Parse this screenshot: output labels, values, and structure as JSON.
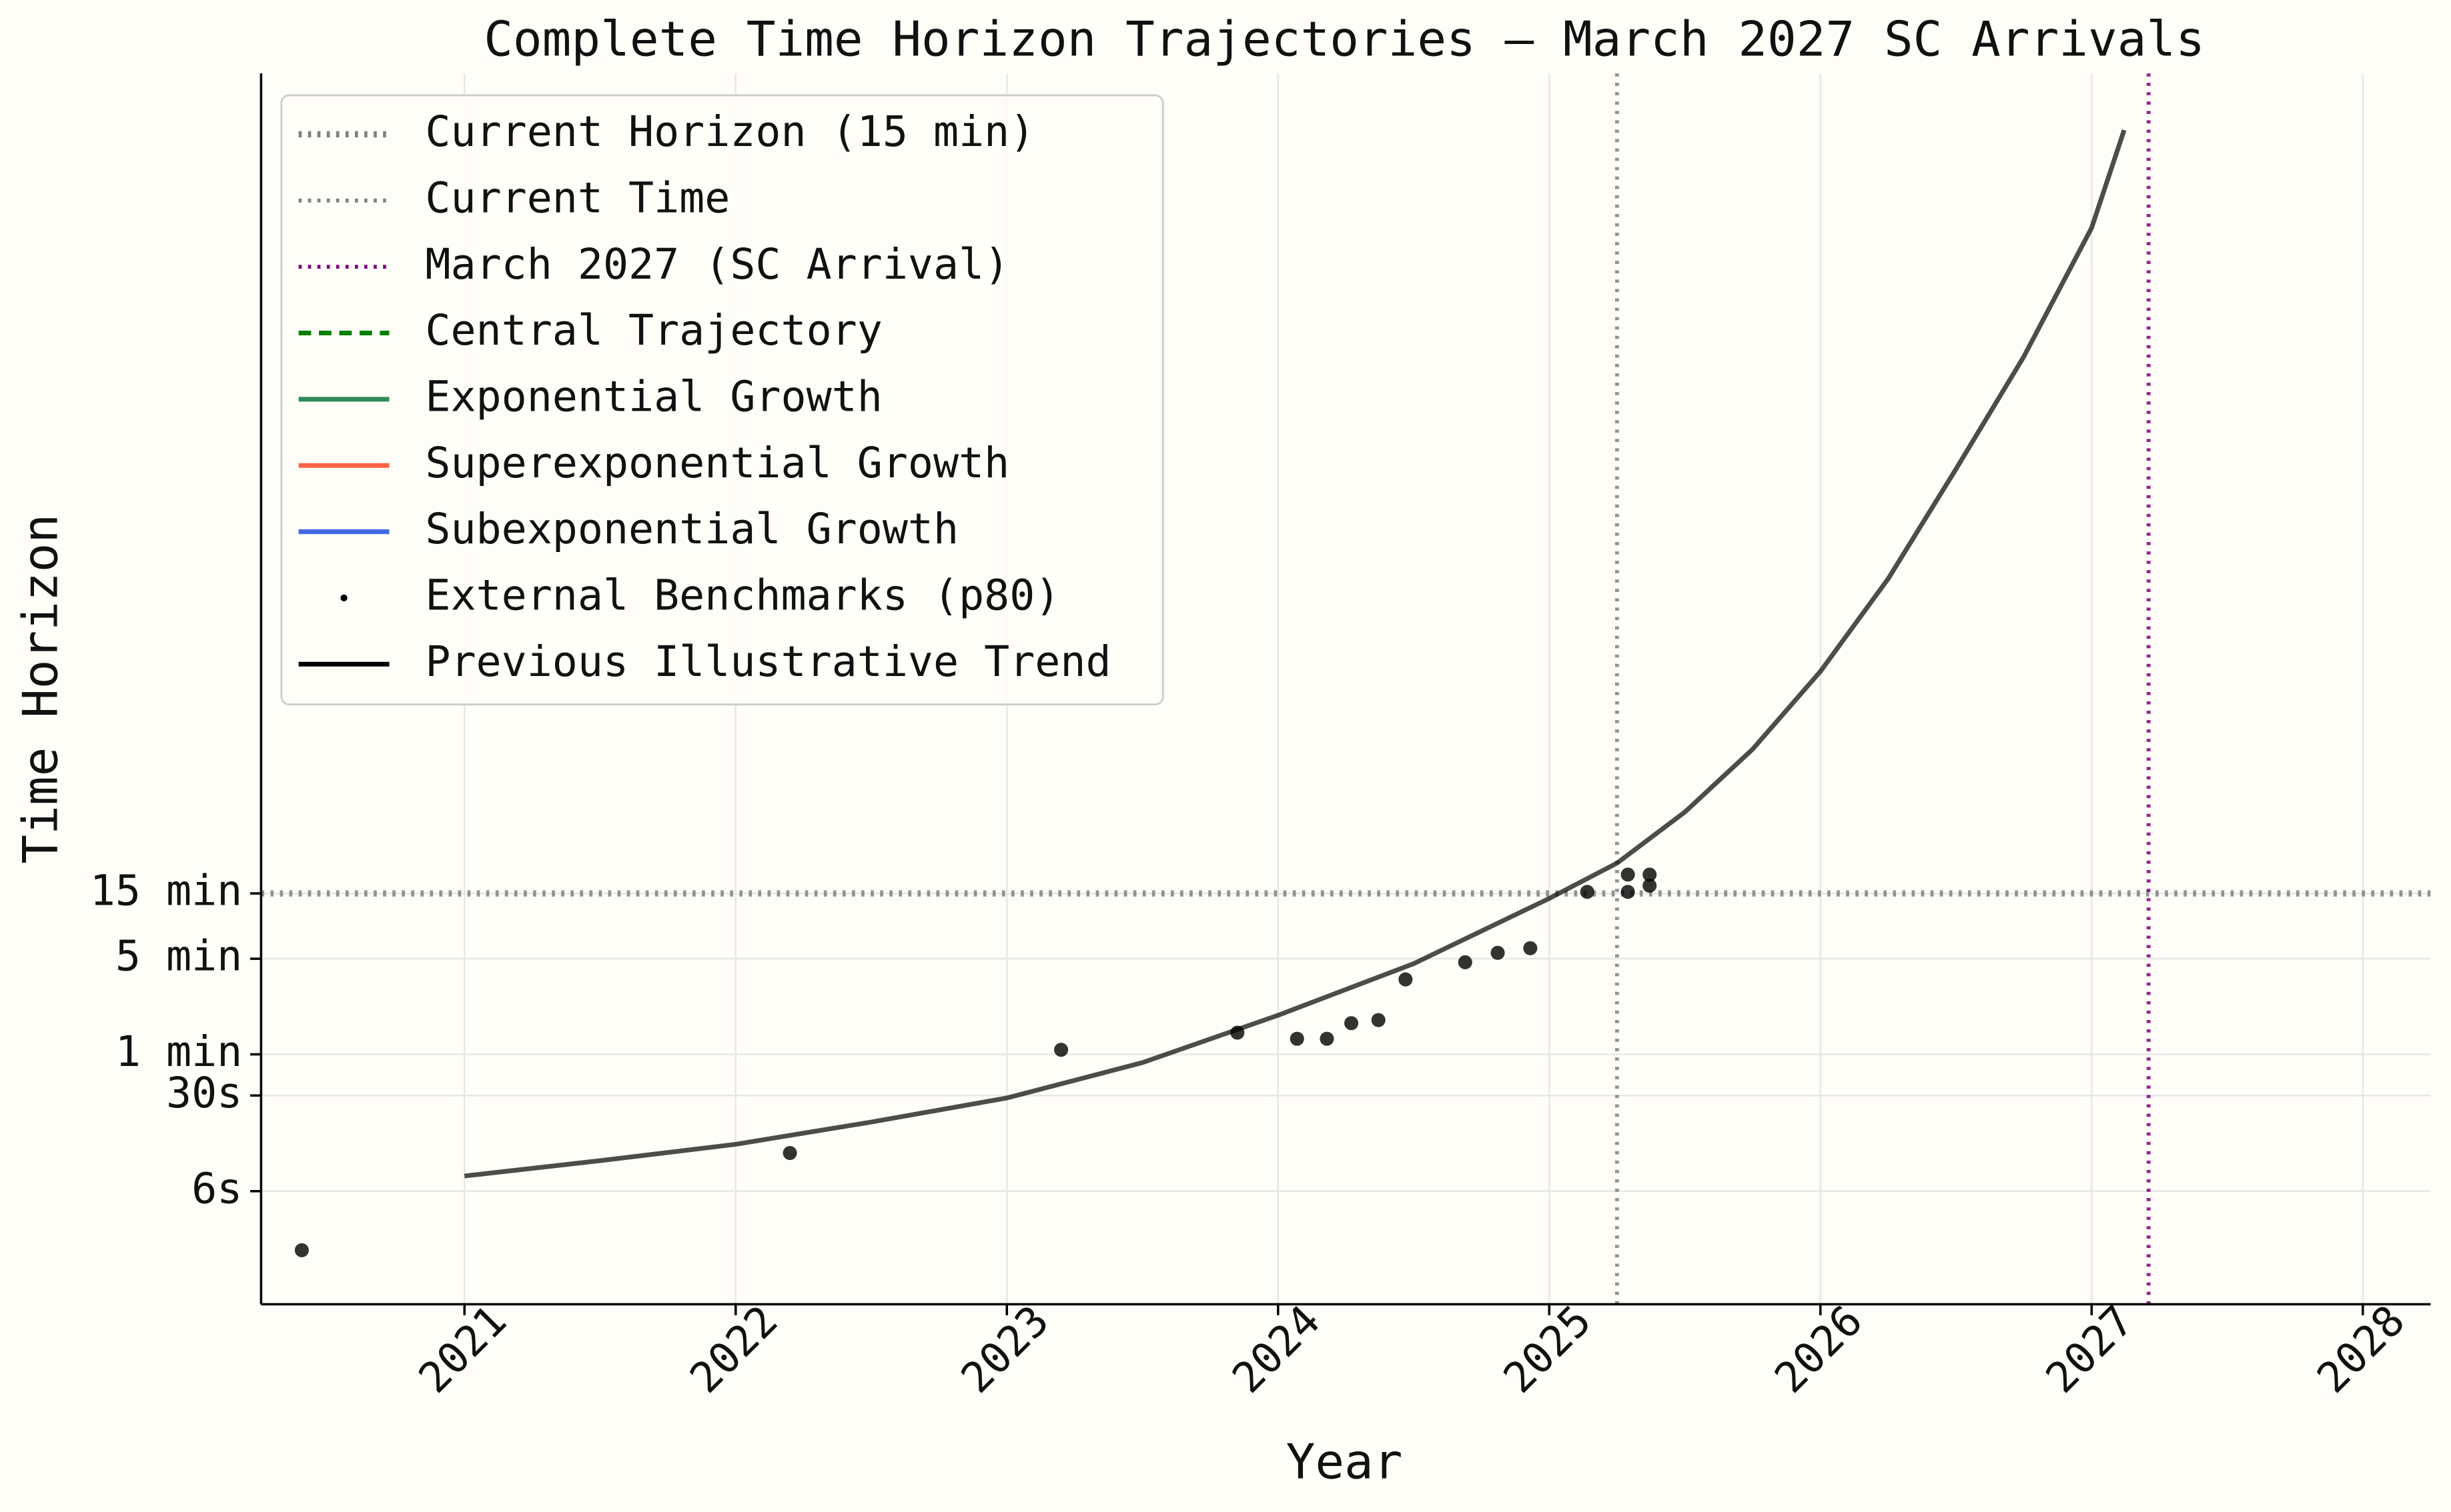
{
  "chart_data": {
    "type": "line",
    "title": "Complete Time Horizon Trajectories — March 2027 SC Arrivals",
    "x_label": "Year",
    "y_label": "Time Horizon",
    "ylog": true,
    "grid": true,
    "legend_position": "upper left",
    "xlim": [
      2020.25,
      2028.25
    ],
    "xticks": [
      2021,
      2022,
      2023,
      2024,
      2025,
      2026,
      2027,
      2028
    ],
    "ylim": [
      0.0149,
      14800000
    ],
    "yticks": [
      {
        "value": 0.1,
        "label": "6s"
      },
      {
        "value": 0.5,
        "label": "30s"
      },
      {
        "value": 1,
        "label": "1 min"
      },
      {
        "value": 5,
        "label": "5 min"
      },
      {
        "value": 15,
        "label": "15 min"
      }
    ],
    "reference_lines": [
      {
        "name": "Current Horizon (15 min)",
        "color": "#808080",
        "style": "dotted",
        "width": 4,
        "y": 15
      },
      {
        "name": "Current Time",
        "color": "#808080",
        "style": "dotted",
        "width": 2.5,
        "x": 2025.25
      },
      {
        "name": "March 2027 (SC Arrival)",
        "color": "#800080",
        "style": "dotted",
        "width": 2.5,
        "x": 2027.21
      }
    ],
    "series": [
      {
        "name": "Central Trajectory",
        "color": "#008000",
        "style": "dashed"
      },
      {
        "name": "Exponential Growth",
        "color": "#2e8b57",
        "style": "solid"
      },
      {
        "name": "Superexponential Growth",
        "color": "#ff6347",
        "style": "solid"
      },
      {
        "name": "Subexponential Growth",
        "color": "#4169e1",
        "style": "solid"
      },
      {
        "name": "External Benchmarks (p80)",
        "color": "#000000",
        "style": "scatter",
        "x": [
          2020.4,
          2022.2,
          2023.2,
          2023.85,
          2024.07,
          2024.18,
          2024.27,
          2024.37,
          2024.47,
          2024.69,
          2024.81,
          2024.93,
          2025.14,
          2025.29,
          2025.29,
          2025.37,
          2025.37
        ],
        "values": [
          0.037,
          0.19,
          1.08,
          1.44,
          1.3,
          1.3,
          1.69,
          1.78,
          3.53,
          4.71,
          5.52,
          5.97,
          15.4,
          15.4,
          20.6,
          20.6,
          17.1
        ]
      },
      {
        "name": "Previous Illustrative Trend",
        "color": "#000000",
        "style": "solid",
        "x": [
          2021,
          2021.5,
          2022,
          2022.5,
          2023,
          2023.5,
          2024,
          2024.5,
          2025,
          2025.25,
          2025.5,
          2025.75,
          2026,
          2026.25,
          2026.5,
          2026.75,
          2027,
          2027.12
        ],
        "values": [
          0.129,
          0.167,
          0.22,
          0.32,
          0.48,
          0.87,
          1.93,
          4.6,
          13.8,
          25,
          59,
          170,
          630,
          3000,
          19000,
          126000,
          1100000,
          5700000
        ]
      }
    ]
  }
}
